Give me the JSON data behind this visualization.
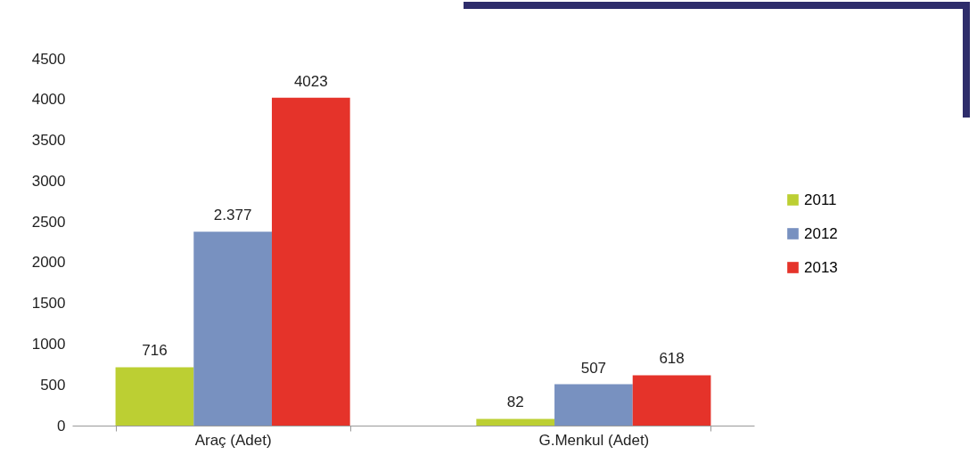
{
  "chart_data": {
    "type": "bar",
    "categories": [
      "Araç (Adet)",
      "G.Menkul (Adet)"
    ],
    "series": [
      {
        "name": "2011",
        "color": "#bccf33",
        "values": [
          716,
          82
        ],
        "value_labels": [
          "716",
          "82"
        ]
      },
      {
        "name": "2012",
        "color": "#7891c0",
        "values": [
          2377,
          507
        ],
        "value_labels": [
          "2.377",
          "507"
        ]
      },
      {
        "name": "2013",
        "color": "#e5332a",
        "values": [
          4023,
          618
        ],
        "value_labels": [
          "4023",
          "618"
        ]
      }
    ],
    "ylim": [
      0,
      4500
    ],
    "yticks": [
      0,
      500,
      1000,
      1500,
      2000,
      2500,
      3000,
      3500,
      4000,
      4500
    ],
    "grid": false,
    "legend": "right"
  }
}
